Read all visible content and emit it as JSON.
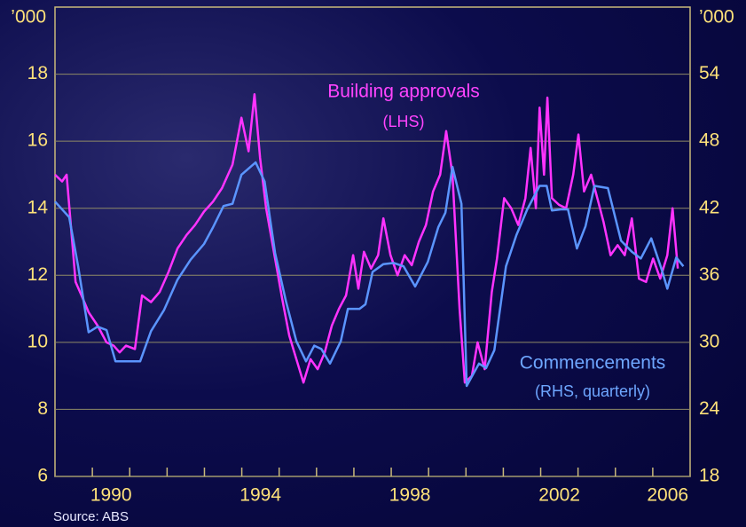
{
  "chart_data": {
    "type": "line",
    "y_unit_label": "’000",
    "y2_unit_label": "’000",
    "source": "Source: ABS",
    "annotations": [
      {
        "text": "Building approvals",
        "color": "#ff44ff"
      },
      {
        "text": "(LHS)",
        "color": "#ff44ff"
      },
      {
        "text": "Commencements",
        "color": "#6ea6ff"
      },
      {
        "text": "(RHS, quarterly)",
        "color": "#6ea6ff"
      }
    ],
    "xlim": [
      1989,
      2006
    ],
    "xticks": [
      {
        "value": 1990.5,
        "label": "1990"
      },
      {
        "value": 1994.5,
        "label": "1994"
      },
      {
        "value": 1998.5,
        "label": "1998"
      },
      {
        "value": 2002.5,
        "label": "2002"
      },
      {
        "value": 2005.4,
        "label": "2006"
      }
    ],
    "x_minor_ticks": [
      1990,
      1991,
      1992,
      1993,
      1994,
      1995,
      1996,
      1997,
      1998,
      1999,
      2000,
      2001,
      2002,
      2003,
      2004,
      2005
    ],
    "ylim": [
      6,
      20
    ],
    "yticks": [
      6,
      8,
      10,
      12,
      14,
      16,
      18
    ],
    "y2lim": [
      18,
      60
    ],
    "y2ticks": [
      18,
      24,
      30,
      36,
      42,
      48,
      54
    ],
    "grid": true,
    "series": [
      {
        "name": "Building approvals",
        "color": "#ff33ff",
        "x": [
          1989.0,
          1989.19,
          1989.31,
          1989.55,
          1989.71,
          1989.9,
          1990.14,
          1990.38,
          1990.57,
          1990.73,
          1990.9,
          1991.14,
          1991.33,
          1991.57,
          1991.8,
          1992.04,
          1992.28,
          1992.52,
          1992.75,
          1992.99,
          1993.23,
          1993.47,
          1993.75,
          1993.99,
          1994.18,
          1994.34,
          1994.49,
          1994.65,
          1994.89,
          1995.08,
          1995.27,
          1995.46,
          1995.65,
          1995.84,
          1996.03,
          1996.22,
          1996.41,
          1996.6,
          1996.79,
          1996.98,
          1997.12,
          1997.27,
          1997.46,
          1997.65,
          1997.79,
          1997.98,
          1998.17,
          1998.36,
          1998.55,
          1998.74,
          1998.93,
          1999.12,
          1999.31,
          1999.47,
          1999.64,
          1999.83,
          1999.97,
          2000.16,
          2000.31,
          2000.5,
          2000.69,
          2000.83,
          2001.02,
          2001.21,
          2001.4,
          2001.59,
          2001.73,
          2001.87,
          2001.97,
          2002.09,
          2002.18,
          2002.3,
          2002.49,
          2002.68,
          2002.87,
          2003.01,
          2003.16,
          2003.35,
          2003.54,
          2003.68,
          2003.87,
          2004.06,
          2004.25,
          2004.44,
          2004.63,
          2004.82,
          2005.01,
          2005.2,
          2005.39,
          2005.53,
          2005.67
        ],
        "values": [
          15.0,
          14.8,
          15.0,
          11.8,
          11.4,
          10.9,
          10.5,
          10.0,
          9.9,
          9.7,
          9.9,
          9.8,
          11.4,
          11.2,
          11.5,
          12.1,
          12.8,
          13.2,
          13.5,
          13.9,
          14.2,
          14.6,
          15.3,
          16.7,
          15.7,
          17.4,
          15.5,
          14.0,
          12.5,
          11.3,
          10.2,
          9.5,
          8.8,
          9.5,
          9.2,
          9.7,
          10.5,
          11.0,
          11.4,
          12.6,
          11.6,
          12.7,
          12.2,
          12.6,
          13.7,
          12.6,
          12.0,
          12.6,
          12.3,
          13.0,
          13.5,
          14.5,
          15.0,
          16.3,
          15.0,
          11.0,
          8.8,
          9.0,
          10.0,
          9.2,
          11.5,
          12.5,
          14.3,
          14.0,
          13.5,
          14.3,
          15.8,
          14.0,
          17.0,
          15.0,
          17.3,
          14.3,
          14.1,
          14.0,
          15.0,
          16.2,
          14.5,
          15.0,
          14.2,
          13.6,
          12.6,
          12.9,
          12.6,
          13.7,
          11.9,
          11.8,
          12.5,
          11.9,
          12.6,
          14.0,
          12.2
        ]
      },
      {
        "name": "Commencements",
        "color": "#5b95ff",
        "axis": "y2",
        "x": [
          1989.0,
          1989.38,
          1989.62,
          1989.9,
          1990.14,
          1990.38,
          1990.62,
          1990.97,
          1991.28,
          1991.57,
          1991.92,
          1992.28,
          1992.63,
          1992.99,
          1993.23,
          1993.51,
          1993.75,
          1993.99,
          1994.37,
          1994.61,
          1994.89,
          1995.18,
          1995.46,
          1995.72,
          1995.94,
          1996.13,
          1996.36,
          1996.65,
          1996.84,
          1997.15,
          1997.31,
          1997.5,
          1997.79,
          1998.07,
          1998.33,
          1998.64,
          1998.98,
          1999.26,
          1999.45,
          1999.64,
          1999.88,
          2000.02,
          2000.35,
          2000.54,
          2000.76,
          2001.07,
          2001.35,
          2001.64,
          2001.97,
          2002.16,
          2002.3,
          2002.54,
          2002.73,
          2002.97,
          2003.2,
          2003.44,
          2003.8,
          2004.15,
          2004.44,
          2004.68,
          2004.96,
          2005.25,
          2005.39,
          2005.63,
          2005.82
        ],
        "values": [
          42.6,
          41.2,
          36.8,
          30.9,
          31.4,
          31.1,
          28.3,
          28.3,
          28.3,
          31.0,
          32.9,
          35.6,
          37.4,
          38.8,
          40.3,
          42.2,
          42.4,
          45.0,
          46.1,
          44.4,
          38.0,
          33.7,
          30.1,
          28.3,
          29.7,
          29.4,
          28.1,
          30.1,
          33.0,
          33.0,
          33.4,
          36.3,
          37.0,
          37.1,
          36.8,
          35.0,
          37.2,
          40.3,
          41.6,
          45.7,
          42.4,
          26.1,
          28.1,
          27.7,
          29.3,
          36.8,
          39.6,
          41.9,
          44.0,
          44.0,
          41.8,
          41.9,
          41.9,
          38.4,
          40.4,
          44.0,
          43.8,
          39.1,
          38.1,
          37.5,
          39.3,
          36.4,
          34.8,
          37.6,
          36.8
        ]
      }
    ]
  }
}
